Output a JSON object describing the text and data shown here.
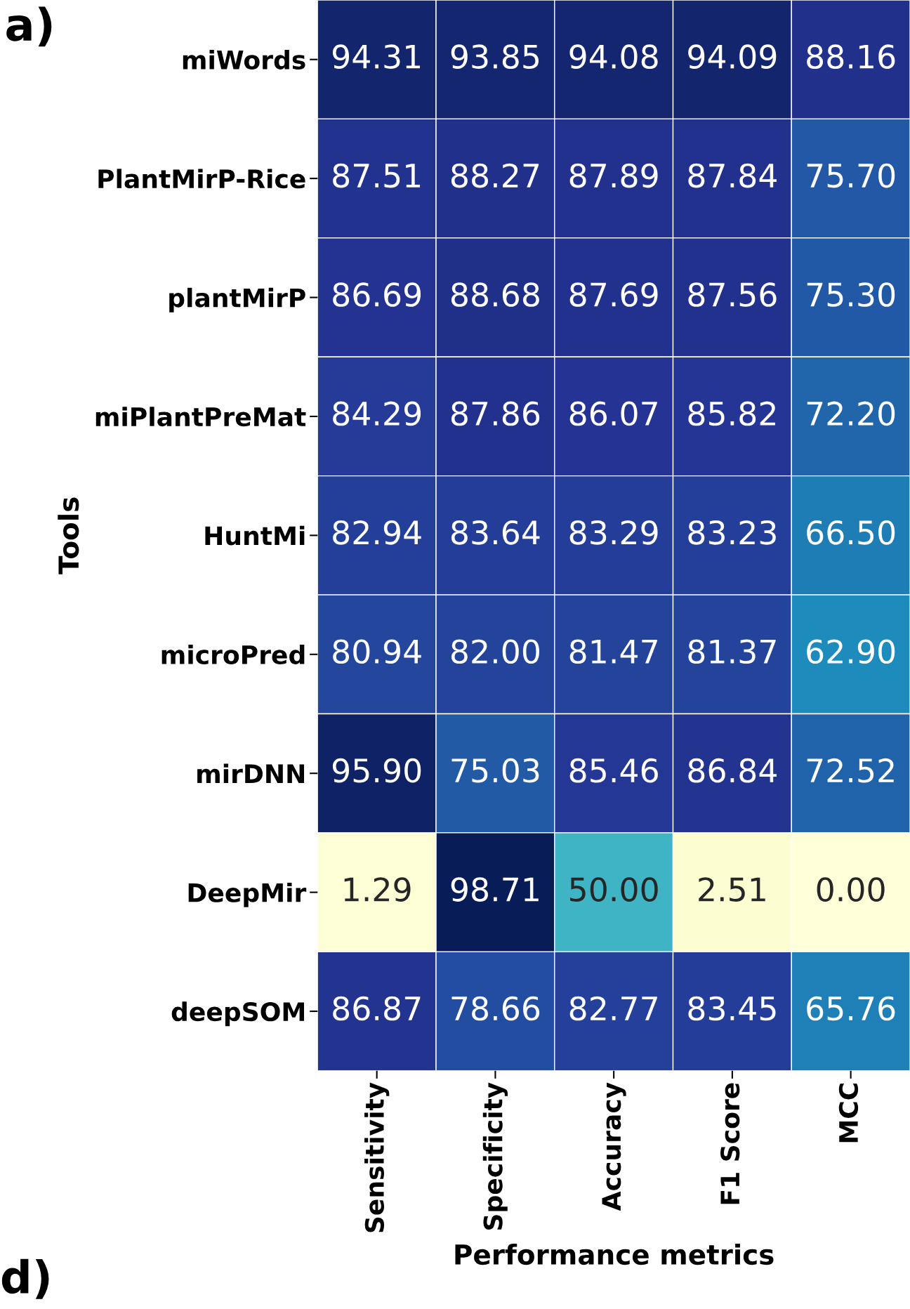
{
  "chart_data": {
    "type": "heatmap",
    "xlabel": "Performance metrics",
    "ylabel": "Tools",
    "categories": [
      "Sensitivity",
      "Specificity",
      "Accuracy",
      "F1 Score",
      "MCC"
    ],
    "y_categories": [
      "miWords",
      "PlantMirP-Rice",
      "plantMirP",
      "miPlantPreMat",
      "HuntMi",
      "microPred",
      "mirDNN",
      "DeepMir",
      "deepSOM"
    ],
    "cells": [
      [
        94.31,
        93.85,
        94.08,
        94.09,
        88.16
      ],
      [
        87.51,
        88.27,
        87.89,
        87.84,
        75.7
      ],
      [
        86.69,
        88.68,
        87.69,
        87.56,
        75.3
      ],
      [
        84.29,
        87.86,
        86.07,
        85.82,
        72.2
      ],
      [
        82.94,
        83.64,
        83.29,
        83.23,
        66.5
      ],
      [
        80.94,
        82.0,
        81.47,
        81.37,
        62.9
      ],
      [
        95.9,
        75.03,
        85.46,
        86.84,
        72.52
      ],
      [
        1.29,
        98.71,
        50.0,
        2.51,
        0.0
      ],
      [
        86.87,
        78.66,
        82.77,
        83.45,
        65.76
      ]
    ],
    "cell_labels": [
      [
        "94.31",
        "93.85",
        "94.08",
        "94.09",
        "88.16"
      ],
      [
        "87.51",
        "88.27",
        "87.89",
        "87.84",
        "75.70"
      ],
      [
        "86.69",
        "88.68",
        "87.69",
        "87.56",
        "75.30"
      ],
      [
        "84.29",
        "87.86",
        "86.07",
        "85.82",
        "72.20"
      ],
      [
        "82.94",
        "83.64",
        "83.29",
        "83.23",
        "66.50"
      ],
      [
        "80.94",
        "82.00",
        "81.47",
        "81.37",
        "62.90"
      ],
      [
        "95.90",
        "75.03",
        "85.46",
        "86.84",
        "72.52"
      ],
      [
        "1.29",
        "98.71",
        "50.00",
        "2.51",
        "0.00"
      ],
      [
        "86.87",
        "78.66",
        "82.77",
        "83.45",
        "65.76"
      ]
    ],
    "annotations": [
      "a)",
      "d)"
    ]
  }
}
